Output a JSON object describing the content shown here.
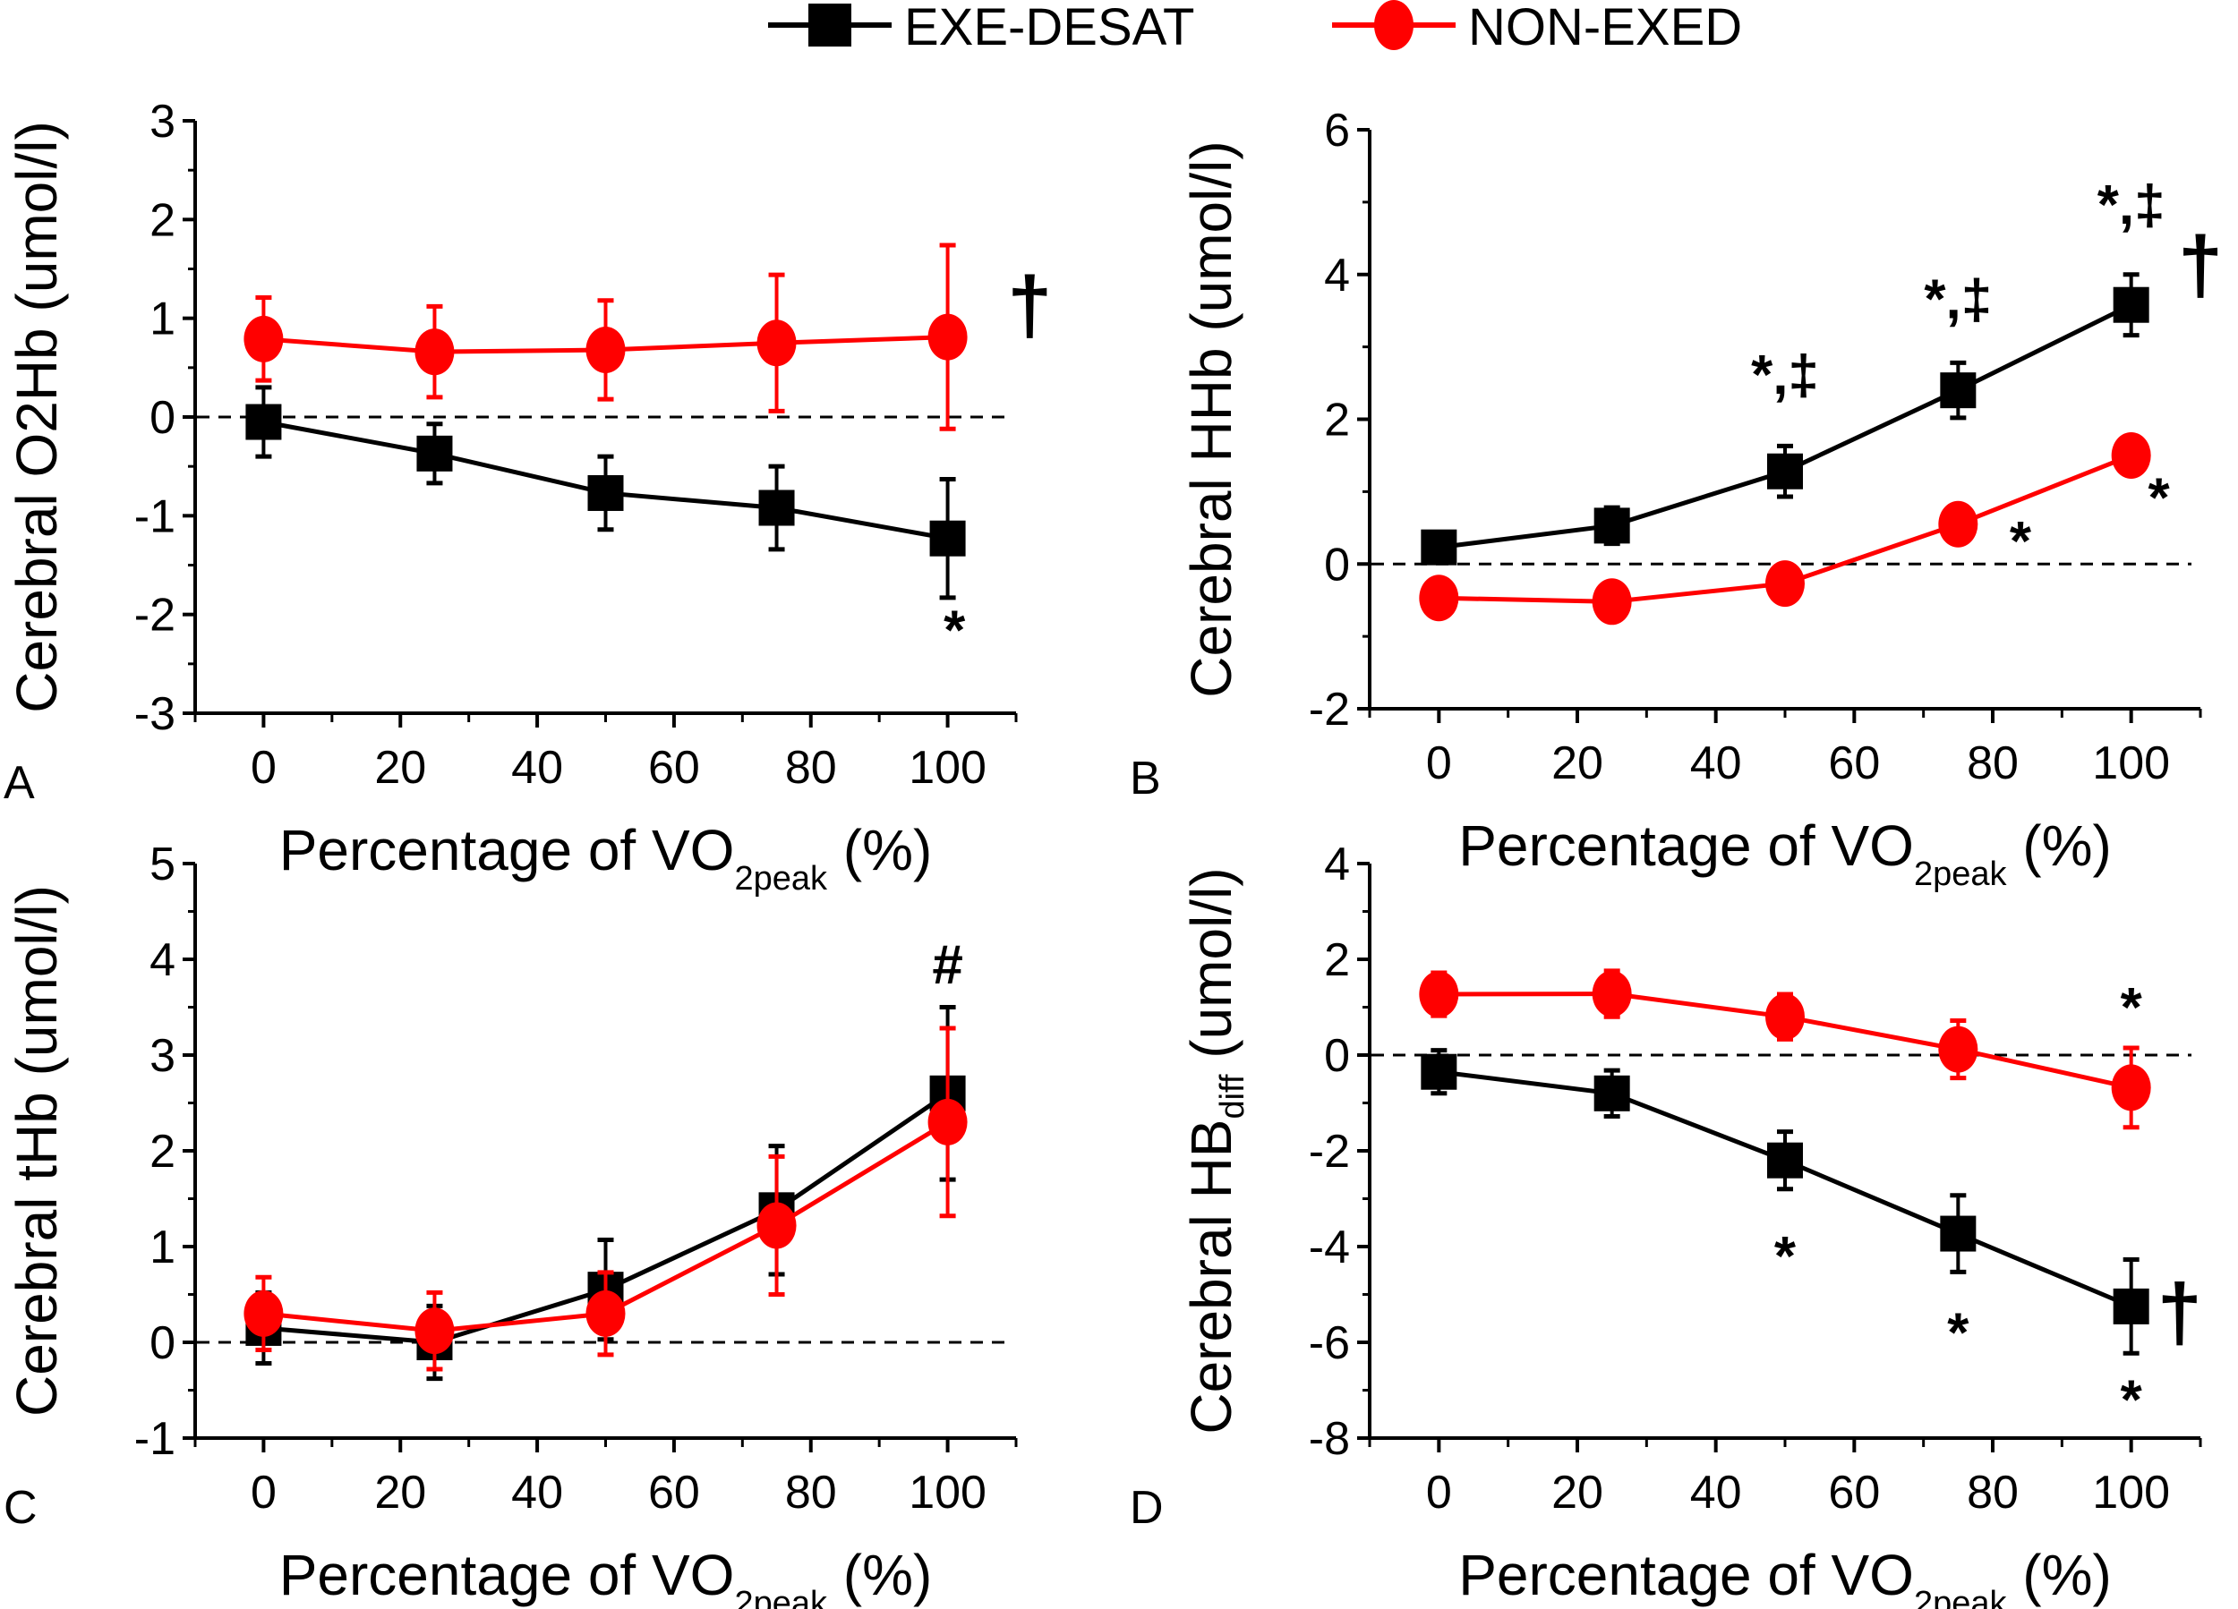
{
  "legend": [
    {
      "name": "EXE-DESAT",
      "color": "#000000",
      "marker": "square"
    },
    {
      "name": "NON-EXED",
      "color": "#ff0000",
      "marker": "circle"
    }
  ],
  "chart_data": [
    {
      "type": "line",
      "panel_label": "A",
      "title": "",
      "xlabel": "Percentage of VO2peak (%)",
      "xlabel_main": "Percentage of VO",
      "xlabel_sub": "2peak",
      "xlabel_suffix": "(%)",
      "ylabel": "Cerebral O2Hb (umol/l)",
      "ylabel_main": "Cerebral O2Hb (umol/l)",
      "ylabel_sub": "",
      "ylabel_suffix": "",
      "xlim": [
        -10,
        110
      ],
      "ylim": [
        -3,
        3
      ],
      "xticks": [
        0,
        20,
        40,
        60,
        80,
        100
      ],
      "yticks": [
        -3,
        -2,
        -1,
        0,
        1,
        2,
        3
      ],
      "reference_line_y": 0,
      "x": [
        0,
        25,
        50,
        75,
        100
      ],
      "series": [
        {
          "name": "EXE-DESAT",
          "values": [
            -0.05,
            -0.37,
            -0.77,
            -0.92,
            -1.23
          ],
          "errors": [
            0.35,
            0.3,
            0.37,
            0.42,
            0.6
          ]
        },
        {
          "name": "NON-EXED",
          "values": [
            0.79,
            0.66,
            0.68,
            0.75,
            0.81
          ],
          "errors": [
            0.42,
            0.46,
            0.5,
            0.69,
            0.93
          ]
        }
      ],
      "annotations": [
        {
          "text": "†",
          "x": 112,
          "y": 0.85,
          "size": "large"
        },
        {
          "text": "*",
          "x": 101,
          "y": -2.35,
          "size": "medium"
        }
      ]
    },
    {
      "type": "line",
      "panel_label": "B",
      "title": "",
      "xlabel": "Percentage of VO2peak (%)",
      "xlabel_main": "Percentage of VO",
      "xlabel_sub": "2peak",
      "xlabel_suffix": "(%)",
      "ylabel": "Cerebral HHb (umol/l)",
      "ylabel_main": "Cerebral HHb (umol/l)",
      "ylabel_sub": "",
      "ylabel_suffix": "",
      "xlim": [
        -10,
        110
      ],
      "ylim": [
        -2,
        6
      ],
      "xticks": [
        0,
        20,
        40,
        60,
        80,
        100
      ],
      "yticks": [
        -2,
        0,
        2,
        4,
        6
      ],
      "reference_line_y": 0,
      "x": [
        0,
        25,
        50,
        75,
        100
      ],
      "series": [
        {
          "name": "EXE-DESAT",
          "values": [
            0.23,
            0.53,
            1.28,
            2.4,
            3.58
          ],
          "errors": [
            0.15,
            0.25,
            0.35,
            0.38,
            0.42
          ]
        },
        {
          "name": "NON-EXED",
          "values": [
            -0.47,
            -0.52,
            -0.27,
            0.55,
            1.5
          ],
          "errors": [
            0.1,
            0.1,
            0.1,
            0.2,
            0.1
          ]
        }
      ],
      "annotations": [
        {
          "text": "*,‡",
          "x": 50,
          "y": 2.35,
          "size": "medium"
        },
        {
          "text": "*,‡",
          "x": 75,
          "y": 3.4,
          "size": "medium"
        },
        {
          "text": "*,‡",
          "x": 100,
          "y": 4.7,
          "size": "medium"
        },
        {
          "text": "†",
          "x": 110,
          "y": 3.75,
          "size": "large"
        },
        {
          "text": "*",
          "x": 84,
          "y": 0.05,
          "size": "medium"
        },
        {
          "text": "*",
          "x": 104,
          "y": 0.65,
          "size": "medium"
        }
      ]
    },
    {
      "type": "line",
      "panel_label": "C",
      "title": "",
      "xlabel": "Percentage of VO2peak (%)",
      "xlabel_main": "Percentage of VO",
      "xlabel_sub": "2peak",
      "xlabel_suffix": "(%)",
      "ylabel": "Cerebral tHb (umol/l)",
      "ylabel_main": "Cerebral tHb (umol/l)",
      "ylabel_sub": "",
      "ylabel_suffix": "",
      "xlim": [
        -10,
        110
      ],
      "ylim": [
        -1,
        5
      ],
      "xticks": [
        0,
        20,
        40,
        60,
        80,
        100
      ],
      "yticks": [
        -1,
        0,
        1,
        2,
        3,
        4,
        5
      ],
      "reference_line_y": 0,
      "x": [
        0,
        25,
        50,
        75,
        100
      ],
      "series": [
        {
          "name": "EXE-DESAT",
          "values": [
            0.15,
            0.0,
            0.55,
            1.38,
            2.6
          ],
          "errors": [
            0.37,
            0.38,
            0.52,
            0.67,
            0.9
          ]
        },
        {
          "name": "NON-EXED",
          "values": [
            0.3,
            0.12,
            0.3,
            1.22,
            2.3
          ],
          "errors": [
            0.38,
            0.4,
            0.43,
            0.72,
            0.98
          ]
        }
      ],
      "annotations": [
        {
          "text": "#",
          "x": 100,
          "y": 3.75,
          "size": "medium"
        }
      ]
    },
    {
      "type": "line",
      "panel_label": "D",
      "title": "",
      "xlabel": "Percentage of VO2peak (%)",
      "xlabel_main": "Percentage of VO",
      "xlabel_sub": "2peak",
      "xlabel_suffix": "(%)",
      "ylabel": "Cerebral HBdiff (umol/l)",
      "ylabel_main": "Cerebral HB",
      "ylabel_sub": "diff",
      "ylabel_suffix": " (umol/l)",
      "xlim": [
        -10,
        110
      ],
      "ylim": [
        -8,
        4
      ],
      "xticks": [
        0,
        20,
        40,
        60,
        80,
        100
      ],
      "yticks": [
        -8,
        -6,
        -4,
        -2,
        0,
        2,
        4
      ],
      "reference_line_y": 0,
      "x": [
        0,
        25,
        50,
        75,
        100
      ],
      "series": [
        {
          "name": "EXE-DESAT",
          "values": [
            -0.35,
            -0.8,
            -2.2,
            -3.73,
            -5.25
          ],
          "errors": [
            0.45,
            0.48,
            0.6,
            0.8,
            0.98
          ]
        },
        {
          "name": "NON-EXED",
          "values": [
            1.27,
            1.28,
            0.8,
            0.12,
            -0.68
          ],
          "errors": [
            0.45,
            0.48,
            0.47,
            0.6,
            0.83
          ]
        }
      ],
      "annotations": [
        {
          "text": "*",
          "x": 100,
          "y": 0.6,
          "size": "medium"
        },
        {
          "text": "*",
          "x": 50,
          "y": -4.6,
          "size": "medium"
        },
        {
          "text": "*",
          "x": 75,
          "y": -6.2,
          "size": "medium"
        },
        {
          "text": "*",
          "x": 100,
          "y": -7.6,
          "size": "medium"
        },
        {
          "text": "†",
          "x": 107,
          "y": -5.95,
          "size": "large"
        }
      ]
    }
  ]
}
